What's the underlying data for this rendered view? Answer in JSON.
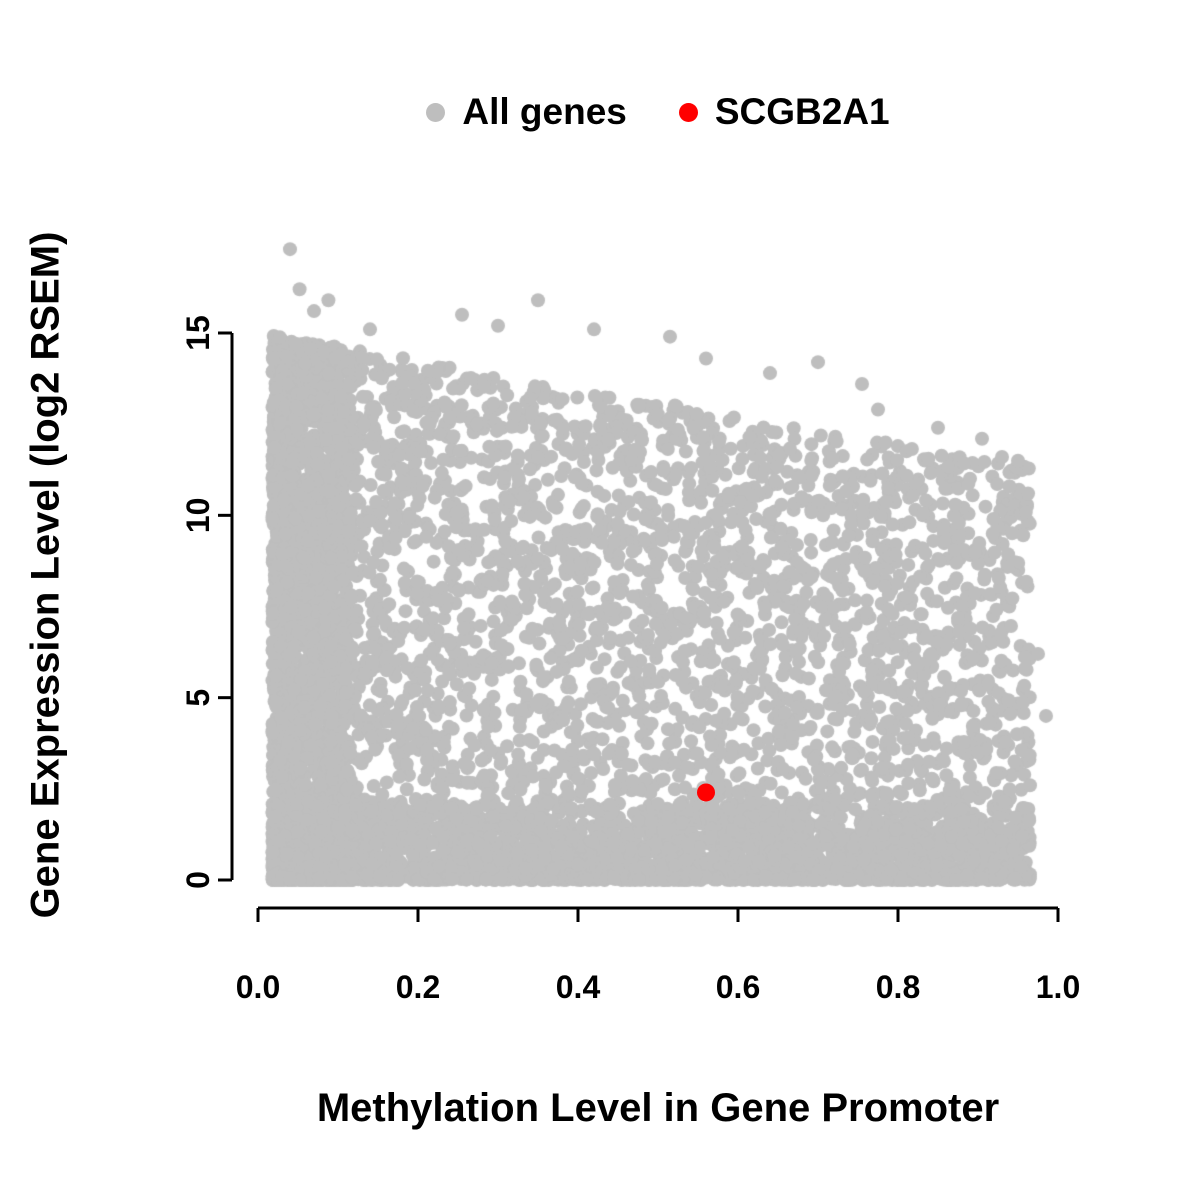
{
  "chart_data": {
    "type": "scatter",
    "title": "",
    "xlabel": "Methylation Level in Gene Promoter",
    "ylabel": "Gene Expression Level (log2 RSEM)",
    "xlim": [
      0,
      1
    ],
    "ylim": [
      0,
      17.5
    ],
    "grid": false,
    "background": "#ffffff",
    "axis_color": "#000000",
    "x_ticks": {
      "values": [
        0,
        0.2,
        0.4,
        0.6,
        0.8,
        1.0
      ],
      "labels": [
        "0.0",
        "0.2",
        "0.4",
        "0.6",
        "0.8",
        "1.0"
      ]
    },
    "y_ticks": {
      "values": [
        0,
        5,
        10,
        15
      ],
      "labels": [
        "0",
        "5",
        "10",
        "15"
      ]
    },
    "legend": {
      "position": "top",
      "items": [
        {
          "label": "All genes",
          "color": "#BEBEBE"
        },
        {
          "label": "SCGB2A1",
          "color": "#FF0000"
        }
      ]
    },
    "series": [
      {
        "name": "All genes",
        "color": "#BEBEBE",
        "marker": "filled-circle",
        "n_points": 8200,
        "distribution": {
          "seed": 20240613,
          "x_min": 0.018,
          "x_max": 0.965,
          "left_column_weight": 0.3,
          "left_column_width": 0.1,
          "x_skew": 1.25,
          "bottom_band_weight": 0.38,
          "bottom_band_height": 2.1,
          "bottom_band_skew": 2.0,
          "frontier_y_at_0": 15.0,
          "frontier_y_at_1": 11.2,
          "body_skew": 0.9,
          "fuzz_prob": 0.012,
          "fuzz_max_factor": 1.07
        },
        "extra_points": [
          [
            0.04,
            17.3
          ],
          [
            0.052,
            16.2
          ],
          [
            0.088,
            15.9
          ],
          [
            0.07,
            15.6
          ],
          [
            0.14,
            15.1
          ],
          [
            0.255,
            15.5
          ],
          [
            0.3,
            15.2
          ],
          [
            0.35,
            15.9
          ],
          [
            0.42,
            15.1
          ],
          [
            0.515,
            14.9
          ],
          [
            0.56,
            14.3
          ],
          [
            0.64,
            13.9
          ],
          [
            0.7,
            14.2
          ],
          [
            0.755,
            13.6
          ],
          [
            0.775,
            12.9
          ],
          [
            0.85,
            12.4
          ],
          [
            0.905,
            12.1
          ],
          [
            0.93,
            11.6
          ],
          [
            0.95,
            11.5
          ],
          [
            0.975,
            6.2
          ],
          [
            0.985,
            4.5
          ],
          [
            0.965,
            2.6
          ],
          [
            0.955,
            1.2
          ]
        ]
      },
      {
        "name": "SCGB2A1",
        "color": "#FF0000",
        "marker": "filled-circle",
        "points": [
          [
            0.56,
            2.4
          ]
        ]
      }
    ]
  }
}
